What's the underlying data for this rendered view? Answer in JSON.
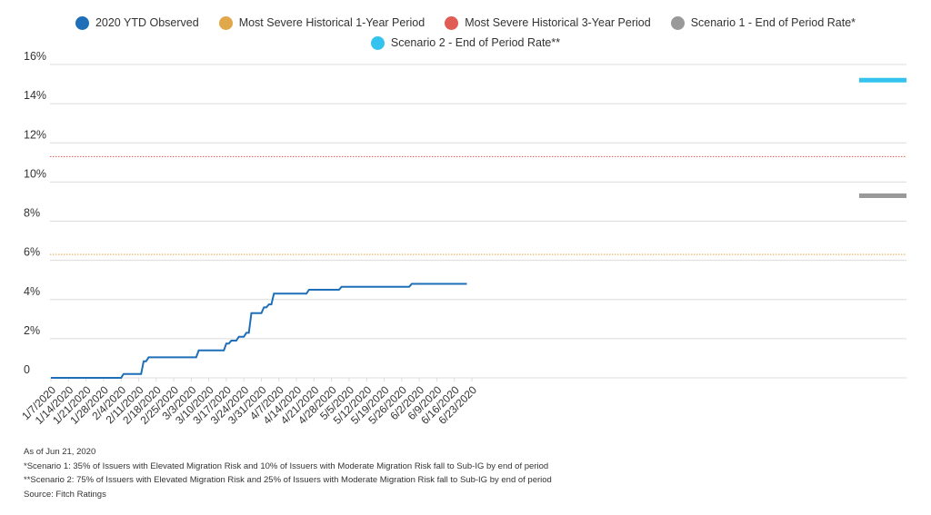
{
  "chart_data": {
    "type": "line",
    "title": "",
    "xlabel": "",
    "ylabel": "",
    "ylim": [
      0,
      16
    ],
    "yticks": [
      "0",
      "2%",
      "4%",
      "6%",
      "8%",
      "10%",
      "12%",
      "14%",
      "16%"
    ],
    "grid": true,
    "legend_position": "top",
    "categories": [
      "1/7/2020",
      "1/14/2020",
      "1/21/2020",
      "1/28/2020",
      "2/4/2020",
      "2/11/2020",
      "2/18/2020",
      "2/25/2020",
      "3/3/2020",
      "3/10/2020",
      "3/17/2020",
      "3/24/2020",
      "3/31/2020",
      "4/7/2020",
      "4/14/2020",
      "4/21/2020",
      "4/28/2020",
      "5/5/2020",
      "5/12/2020",
      "5/19/2020",
      "5/26/2020",
      "6/2/2020",
      "6/9/2020",
      "6/16/2020",
      "6/23/2020"
    ],
    "series": [
      {
        "name": "2020 YTD Observed",
        "color": "#1f6fb8",
        "style": "step",
        "points": [
          {
            "x": "1/7/2020",
            "y": 0
          },
          {
            "x": "2/4/2020",
            "y": 0
          },
          {
            "x": "2/5/2020",
            "y": 0.2
          },
          {
            "x": "2/12/2020",
            "y": 0.2
          },
          {
            "x": "2/13/2020",
            "y": 0.85
          },
          {
            "x": "2/14/2020",
            "y": 0.85
          },
          {
            "x": "2/15/2020",
            "y": 1.05
          },
          {
            "x": "3/5/2020",
            "y": 1.05
          },
          {
            "x": "3/6/2020",
            "y": 1.4
          },
          {
            "x": "3/16/2020",
            "y": 1.4
          },
          {
            "x": "3/17/2020",
            "y": 1.75
          },
          {
            "x": "3/18/2020",
            "y": 1.75
          },
          {
            "x": "3/19/2020",
            "y": 1.9
          },
          {
            "x": "3/21/2020",
            "y": 1.9
          },
          {
            "x": "3/22/2020",
            "y": 2.1
          },
          {
            "x": "3/24/2020",
            "y": 2.1
          },
          {
            "x": "3/25/2020",
            "y": 2.3
          },
          {
            "x": "3/26/2020",
            "y": 2.3
          },
          {
            "x": "3/27/2020",
            "y": 3.3
          },
          {
            "x": "3/31/2020",
            "y": 3.3
          },
          {
            "x": "4/1/2020",
            "y": 3.6
          },
          {
            "x": "4/2/2020",
            "y": 3.6
          },
          {
            "x": "4/3/2020",
            "y": 3.75
          },
          {
            "x": "4/4/2020",
            "y": 3.75
          },
          {
            "x": "4/5/2020",
            "y": 4.3
          },
          {
            "x": "4/18/2020",
            "y": 4.3
          },
          {
            "x": "4/19/2020",
            "y": 4.5
          },
          {
            "x": "5/1/2020",
            "y": 4.5
          },
          {
            "x": "5/2/2020",
            "y": 4.65
          },
          {
            "x": "5/29/2020",
            "y": 4.65
          },
          {
            "x": "5/30/2020",
            "y": 4.8
          },
          {
            "x": "6/21/2020",
            "y": 4.8
          }
        ]
      },
      {
        "name": "Most Severe Historical 1-Year Period",
        "color": "#e0a84a",
        "value": 6.3
      },
      {
        "name": "Most Severe Historical 3-Year Period",
        "color": "#e05c55",
        "value": 11.3
      },
      {
        "name": "Scenario 1 - End of Period Rate*",
        "color": "#999999",
        "value": 9.3
      },
      {
        "name": "Scenario 2 - End of Period Rate**",
        "color": "#33c3ee",
        "value": 15.2
      }
    ]
  },
  "notes": {
    "as_of": "As of Jun 21, 2020",
    "scenario1": "*Scenario 1: 35% of Issuers with Elevated Migration Risk and 10% of Issuers with Moderate Migration Risk fall to Sub-IG by end of period",
    "scenario2": "**Scenario 2: 75% of Issuers with Elevated Migration Risk and 25% of Issuers with Moderate Migration Risk fall to Sub-IG by end of period",
    "source": "Source: Fitch Ratings"
  }
}
